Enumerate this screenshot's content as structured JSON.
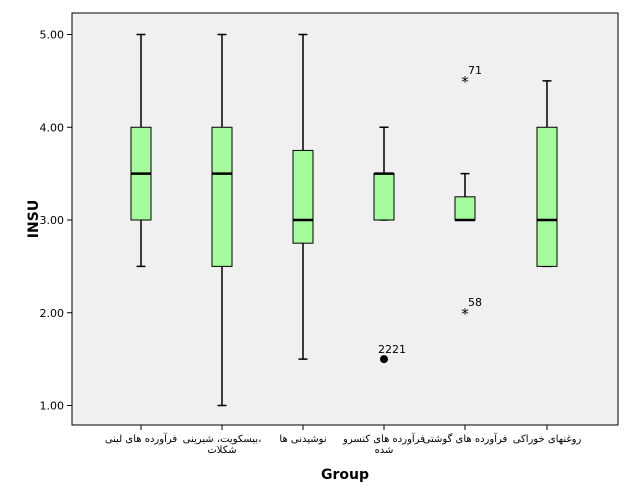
{
  "chart_data": {
    "type": "boxplot",
    "title": "",
    "xlabel": "Group",
    "ylabel": "INSU",
    "ylim": [
      0.7,
      5.3
    ],
    "yticks": [
      1.0,
      2.0,
      3.0,
      4.0,
      5.0
    ],
    "ytick_labels": [
      "1.00",
      "2.00",
      "3.00",
      "4.00",
      "5.00"
    ],
    "grid": false,
    "box_color": "#a6fb9c",
    "background_color": "#f0f0f0",
    "categories": [
      "فرآورده های لبنی",
      "بیسکویت، شیرینی، شکلات",
      "نوشیدنی ها",
      "فرآورده های کنسرو شده",
      "فرآورده های گوشتی",
      "روغنهای خوراکی"
    ],
    "category_lines": [
      [
        "فرآورده های لبنی"
      ],
      [
        "بیسکویت، شیرینی،",
        "شکلات"
      ],
      [
        "نوشیدنی ها"
      ],
      [
        "فرآورده های کنسرو",
        "شده"
      ],
      [
        "فرآورده های گوشتی"
      ],
      [
        "روغنهای خوراکی"
      ]
    ],
    "boxes": [
      {
        "whisker_low": 2.5,
        "q1": 3.0,
        "median": 3.5,
        "q3": 4.0,
        "whisker_high": 5.0
      },
      {
        "whisker_low": 1.0,
        "q1": 2.5,
        "median": 3.5,
        "q3": 4.0,
        "whisker_high": 5.0
      },
      {
        "whisker_low": 1.5,
        "q1": 2.75,
        "median": 3.0,
        "q3": 3.75,
        "whisker_high": 5.0
      },
      {
        "whisker_low": 3.0,
        "q1": 3.0,
        "median": 3.5,
        "q3": 3.5,
        "whisker_high": 4.0
      },
      {
        "whisker_low": 3.0,
        "q1": 3.0,
        "median": 3.0,
        "q3": 3.25,
        "whisker_high": 3.5
      },
      {
        "whisker_low": 2.5,
        "q1": 2.5,
        "median": 3.0,
        "q3": 4.0,
        "whisker_high": 4.5
      }
    ],
    "outliers": [
      {
        "category_index": 3,
        "value": 1.5,
        "marker": "circle",
        "label": "2221"
      },
      {
        "category_index": 4,
        "value": 4.5,
        "marker": "star",
        "label": "71"
      },
      {
        "category_index": 4,
        "value": 2.0,
        "marker": "star",
        "label": "58"
      }
    ]
  }
}
